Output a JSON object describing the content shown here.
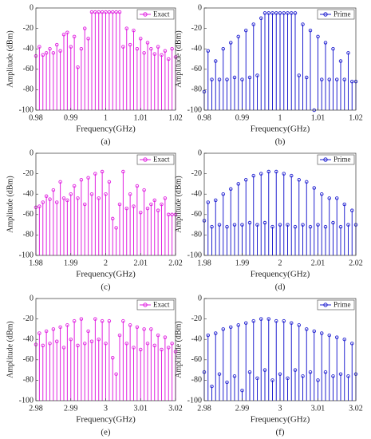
{
  "chart_data": [
    {
      "type": "stem",
      "xlabel": "Frequency(GHz)",
      "ylabel": "Amplitude (dBm)",
      "caption": "(a)",
      "legend": "upper right",
      "xlim": [
        0.98,
        1.02
      ],
      "xticks": [
        0.98,
        0.99,
        1,
        1.01,
        1.02
      ],
      "ylim": [
        -100,
        0
      ],
      "yticks": [
        -100,
        -80,
        -60,
        -40,
        -20,
        0
      ],
      "x": [
        0.98,
        0.981,
        0.982,
        0.983,
        0.984,
        0.985,
        0.986,
        0.987,
        0.988,
        0.989,
        0.99,
        0.991,
        0.992,
        0.993,
        0.994,
        0.995,
        0.996,
        0.997,
        0.998,
        0.999,
        1,
        1.001,
        1.002,
        1.003,
        1.004,
        1.005,
        1.006,
        1.007,
        1.008,
        1.009,
        1.01,
        1.011,
        1.012,
        1.013,
        1.014,
        1.015,
        1.016,
        1.017,
        1.018,
        1.019,
        1.02
      ],
      "series": [
        {
          "name": "Exact",
          "color": "#e020e0",
          "values": [
            -47,
            -38,
            -46,
            -44,
            -40,
            -44,
            -36,
            -42,
            -26,
            -24,
            -38,
            -28,
            -58,
            -40,
            -20,
            -30,
            -4,
            -4,
            -4,
            -4,
            -4,
            -4,
            -4,
            -4,
            -4,
            -38,
            -20,
            -36,
            -22,
            -40,
            -30,
            -44,
            -34,
            -40,
            -45,
            -38,
            -46,
            -42,
            -50,
            -40,
            -48
          ]
        }
      ]
    },
    {
      "type": "stem",
      "xlabel": "Frequency(GHz)",
      "ylabel": "Amplitude (dBm)",
      "caption": "(b)",
      "legend": "upper right",
      "xlim": [
        0.98,
        1.02
      ],
      "xticks": [
        0.98,
        0.99,
        1,
        1.01,
        1.02
      ],
      "ylim": [
        -100,
        0
      ],
      "yticks": [
        -100,
        -80,
        -60,
        -40,
        -20,
        0
      ],
      "x": [
        0.98,
        0.981,
        0.982,
        0.983,
        0.984,
        0.985,
        0.986,
        0.987,
        0.988,
        0.989,
        0.99,
        0.991,
        0.992,
        0.993,
        0.994,
        0.995,
        0.996,
        0.997,
        0.998,
        0.999,
        1,
        1.001,
        1.002,
        1.003,
        1.004,
        1.005,
        1.006,
        1.007,
        1.008,
        1.009,
        1.01,
        1.011,
        1.012,
        1.013,
        1.014,
        1.015,
        1.016,
        1.017,
        1.018,
        1.019,
        1.02
      ],
      "series": [
        {
          "name": "Prime",
          "color": "#2020d0",
          "values": [
            -82,
            -42,
            -70,
            -52,
            -70,
            -40,
            -70,
            -34,
            -68,
            -28,
            -70,
            -22,
            -68,
            -16,
            -66,
            -10,
            -5,
            -5,
            -5,
            -5,
            -5,
            -5,
            -5,
            -5,
            -5,
            -66,
            -16,
            -68,
            -22,
            -100,
            -28,
            -70,
            -34,
            -70,
            -40,
            -70,
            -52,
            -70,
            -44,
            -72,
            -72
          ]
        }
      ]
    },
    {
      "type": "stem",
      "xlabel": "Frequency(GHz)",
      "ylabel": "Amplitude (dBm)",
      "caption": "(c)",
      "legend": "upper right",
      "xlim": [
        1.98,
        2.02
      ],
      "xticks": [
        1.98,
        1.99,
        2,
        2.01,
        2.02
      ],
      "ylim": [
        -100,
        0
      ],
      "yticks": [
        -100,
        -80,
        -60,
        -40,
        -20,
        0
      ],
      "x": [
        1.98,
        1.981,
        1.982,
        1.983,
        1.984,
        1.985,
        1.986,
        1.987,
        1.988,
        1.989,
        1.99,
        1.991,
        1.992,
        1.993,
        1.994,
        1.995,
        1.996,
        1.997,
        1.998,
        1.999,
        2,
        2.001,
        2.002,
        2.003,
        2.004,
        2.005,
        2.006,
        2.007,
        2.008,
        2.009,
        2.01,
        2.011,
        2.012,
        2.013,
        2.014,
        2.015,
        2.016,
        2.017,
        2.018,
        2.019,
        2.02
      ],
      "series": [
        {
          "name": "Exact",
          "color": "#e020e0",
          "values": [
            -53,
            -52,
            -48,
            -42,
            -45,
            -36,
            -48,
            -28,
            -44,
            -46,
            -40,
            -32,
            -44,
            -26,
            -50,
            -24,
            -40,
            -20,
            -44,
            -18,
            -40,
            -28,
            -64,
            -73,
            -50,
            -18,
            -54,
            -40,
            -52,
            -32,
            -58,
            -36,
            -54,
            -50,
            -46,
            -56,
            -50,
            -44,
            -60,
            -60,
            -60
          ]
        }
      ]
    },
    {
      "type": "stem",
      "xlabel": "Frequency(GHz)",
      "ylabel": "Amplitude (dBm)",
      "caption": "(d)",
      "legend": "upper right",
      "xlim": [
        1.98,
        2.02
      ],
      "xticks": [
        1.98,
        1.99,
        2,
        2.01,
        2.02
      ],
      "ylim": [
        -100,
        0
      ],
      "yticks": [
        -100,
        -80,
        -60,
        -40,
        -20,
        0
      ],
      "x": [
        1.98,
        1.981,
        1.982,
        1.983,
        1.984,
        1.985,
        1.986,
        1.987,
        1.988,
        1.989,
        1.99,
        1.991,
        1.992,
        1.993,
        1.994,
        1.995,
        1.996,
        1.997,
        1.998,
        1.999,
        2,
        2.001,
        2.002,
        2.003,
        2.004,
        2.005,
        2.006,
        2.007,
        2.008,
        2.009,
        2.01,
        2.011,
        2.012,
        2.013,
        2.014,
        2.015,
        2.016,
        2.017,
        2.018,
        2.019,
        2.02
      ],
      "series": [
        {
          "name": "Prime",
          "color": "#2020d0",
          "values": [
            -66,
            -48,
            -72,
            -46,
            -70,
            -40,
            -72,
            -35,
            -70,
            -30,
            -70,
            -26,
            -68,
            -22,
            -70,
            -20,
            -68,
            -18,
            -72,
            -18,
            -70,
            -20,
            -70,
            -22,
            -72,
            -26,
            -70,
            -28,
            -72,
            -34,
            -70,
            -40,
            -72,
            -44,
            -68,
            -44,
            -72,
            -50,
            -70,
            -56,
            -70
          ]
        }
      ]
    },
    {
      "type": "stem",
      "xlabel": "Frequency(GHz)",
      "ylabel": "Amplitude (dBm)",
      "caption": "(e)",
      "legend": "upper right",
      "xlim": [
        2.98,
        3.02
      ],
      "xticks": [
        2.98,
        2.99,
        3,
        3.01,
        3.02
      ],
      "ylim": [
        -100,
        0
      ],
      "yticks": [
        -100,
        -80,
        -60,
        -40,
        -20,
        0
      ],
      "x": [
        2.98,
        2.981,
        2.982,
        2.983,
        2.984,
        2.985,
        2.986,
        2.987,
        2.988,
        2.989,
        2.99,
        2.991,
        2.992,
        2.993,
        2.994,
        2.995,
        2.996,
        2.997,
        2.998,
        2.999,
        3,
        3.001,
        3.002,
        3.003,
        3.004,
        3.005,
        3.006,
        3.007,
        3.008,
        3.009,
        3.01,
        3.011,
        3.012,
        3.013,
        3.014,
        3.015,
        3.016,
        3.017,
        3.018,
        3.019,
        3.02
      ],
      "series": [
        {
          "name": "Exact",
          "color": "#e020e0",
          "values": [
            -45,
            -34,
            -46,
            -32,
            -44,
            -30,
            -42,
            -28,
            -48,
            -26,
            -40,
            -22,
            -46,
            -20,
            -44,
            -32,
            -42,
            -20,
            -40,
            -22,
            -44,
            -22,
            -58,
            -74,
            -36,
            -22,
            -44,
            -26,
            -48,
            -28,
            -50,
            -30,
            -44,
            -30,
            -46,
            -36,
            -50,
            -38,
            -48,
            -44,
            -52
          ]
        }
      ]
    },
    {
      "type": "stem",
      "xlabel": "Frequency(GHz)",
      "ylabel": "Amplitude (dBm)",
      "caption": "(f)",
      "legend": "upper right",
      "xlim": [
        2.98,
        3.02
      ],
      "xticks": [
        2.98,
        2.99,
        3,
        3.01,
        3.02
      ],
      "ylim": [
        -100,
        0
      ],
      "yticks": [
        -100,
        -80,
        -60,
        -40,
        -20,
        0
      ],
      "x": [
        2.98,
        2.981,
        2.982,
        2.983,
        2.984,
        2.985,
        2.986,
        2.987,
        2.988,
        2.989,
        2.99,
        2.991,
        2.992,
        2.993,
        2.994,
        2.995,
        2.996,
        2.997,
        2.998,
        2.999,
        3,
        3.001,
        3.002,
        3.003,
        3.004,
        3.005,
        3.006,
        3.007,
        3.008,
        3.009,
        3.01,
        3.011,
        3.012,
        3.013,
        3.014,
        3.015,
        3.016,
        3.017,
        3.018,
        3.019,
        3.02
      ],
      "series": [
        {
          "name": "Prime",
          "color": "#2020d0",
          "values": [
            -72,
            -36,
            -86,
            -34,
            -74,
            -30,
            -82,
            -28,
            -76,
            -26,
            -90,
            -24,
            -72,
            -22,
            -78,
            -20,
            -70,
            -20,
            -80,
            -22,
            -74,
            -22,
            -78,
            -24,
            -70,
            -26,
            -76,
            -30,
            -72,
            -32,
            -80,
            -34,
            -72,
            -36,
            -76,
            -38,
            -74,
            -40,
            -76,
            -44,
            -74
          ]
        }
      ]
    }
  ]
}
